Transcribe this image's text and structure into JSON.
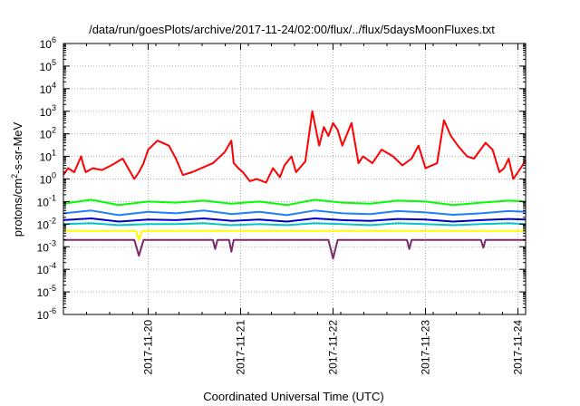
{
  "chart_data": {
    "type": "line",
    "title": "/data/run/goesPlots/archive/2017-11-24/02:00/flux/../flux/5daysMoonFluxes.txt",
    "xlabel": "Coordinated Universal Time (UTC)",
    "ylabel_base": "protons/cm",
    "ylabel_sup": "2",
    "ylabel_rest": "-s-sr-MeV",
    "yscale": "log",
    "ylim": [
      -6,
      6
    ],
    "xlim": [
      "2017-11-19T02:00",
      "2017-11-24T02:00"
    ],
    "grid": true,
    "x_ticks": [
      {
        "t": "2017-11-20T00:00",
        "label": "2017-11-20"
      },
      {
        "t": "2017-11-21T00:00",
        "label": "2017-11-21"
      },
      {
        "t": "2017-11-22T00:00",
        "label": "2017-11-22"
      },
      {
        "t": "2017-11-23T00:00",
        "label": "2017-11-23"
      },
      {
        "t": "2017-11-24T00:00",
        "label": "2017-11-24"
      }
    ],
    "y_ticks": [
      {
        "exp": -6,
        "base": "10",
        "sup": "-6"
      },
      {
        "exp": -5,
        "base": "10",
        "sup": "-5"
      },
      {
        "exp": -4,
        "base": "10",
        "sup": "-4"
      },
      {
        "exp": -3,
        "base": "10",
        "sup": "-3"
      },
      {
        "exp": -2,
        "base": "10",
        "sup": "-2"
      },
      {
        "exp": -1,
        "base": "10",
        "sup": "-1"
      },
      {
        "exp": 0,
        "base": "10",
        "sup": "0"
      },
      {
        "exp": 1,
        "base": "10",
        "sup": "1"
      },
      {
        "exp": 2,
        "base": "10",
        "sup": "2"
      },
      {
        "exp": 3,
        "base": "10",
        "sup": "3"
      },
      {
        "exp": 4,
        "base": "10",
        "sup": "4"
      },
      {
        "exp": 5,
        "base": "10",
        "sup": "5"
      },
      {
        "exp": 6,
        "base": "10",
        "sup": "6"
      }
    ],
    "series": [
      {
        "color": "#ff0000",
        "x": [
          "2017-11-19T02:00",
          "2017-11-19T03:12",
          "2017-11-19T04:48",
          "2017-11-19T06:36",
          "2017-11-19T07:12",
          "2017-11-19T07:48",
          "2017-11-19T09:36",
          "2017-11-19T12:00",
          "2017-11-19T14:24",
          "2017-11-19T17:24",
          "2017-11-19T20:24",
          "2017-11-19T21:36",
          "2017-11-19T22:48",
          "2017-11-20T00:00",
          "2017-11-20T02:24",
          "2017-11-20T05:24",
          "2017-11-20T07:12",
          "2017-11-20T09:00",
          "2017-11-20T11:24",
          "2017-11-20T13:48",
          "2017-11-20T16:48",
          "2017-11-20T19:48",
          "2017-11-20T21:36",
          "2017-11-20T22:12",
          "2017-11-20T23:24",
          "2017-11-21T00:36",
          "2017-11-21T02:24",
          "2017-11-21T04:12",
          "2017-11-21T06:36",
          "2017-11-21T08:24",
          "2017-11-21T10:12",
          "2017-11-21T11:24",
          "2017-11-21T13:12",
          "2017-11-21T14:24",
          "2017-11-21T16:48",
          "2017-11-21T18:36",
          "2017-11-21T20:24",
          "2017-11-21T21:36",
          "2017-11-21T22:48",
          "2017-11-22T00:00",
          "2017-11-22T01:12",
          "2017-11-22T02:24",
          "2017-11-22T04:48",
          "2017-11-22T06:36",
          "2017-11-22T07:48",
          "2017-11-22T10:12",
          "2017-11-22T12:36",
          "2017-11-22T15:36",
          "2017-11-22T18:00",
          "2017-11-22T20:24",
          "2017-11-22T22:12",
          "2017-11-23T00:00",
          "2017-11-23T03:00",
          "2017-11-23T04:48",
          "2017-11-23T06:36",
          "2017-11-23T08:24",
          "2017-11-23T10:48",
          "2017-11-23T12:36",
          "2017-11-23T15:36",
          "2017-11-23T17:24",
          "2017-11-23T19:12",
          "2017-11-23T20:24",
          "2017-11-23T21:36",
          "2017-11-23T22:48",
          "2017-11-24T00:00",
          "2017-11-24T01:12",
          "2017-11-24T02:00"
        ],
        "y": [
          1.5,
          3,
          2,
          10,
          4,
          2,
          3,
          2.5,
          4,
          8,
          1,
          2,
          5,
          20,
          50,
          30,
          8,
          1.5,
          2,
          3,
          5,
          15,
          50,
          5,
          3,
          2,
          0.8,
          1,
          0.7,
          3,
          1.2,
          4,
          10,
          2,
          6,
          1000,
          30,
          200,
          80,
          300,
          150,
          30,
          300,
          5,
          10,
          5,
          20,
          10,
          4,
          8,
          30,
          3,
          5,
          400,
          80,
          30,
          10,
          8,
          40,
          20,
          2,
          3,
          8,
          1,
          2,
          4,
          7
        ]
      },
      {
        "color": "#00ff00",
        "x": [
          "2017-11-19T02:00",
          "2017-11-19T09:12",
          "2017-11-19T16:24",
          "2017-11-20T00:00",
          "2017-11-20T07:12",
          "2017-11-20T14:24",
          "2017-11-20T21:36",
          "2017-11-21T04:48",
          "2017-11-21T12:00",
          "2017-11-21T19:12",
          "2017-11-22T02:24",
          "2017-11-22T09:36",
          "2017-11-22T16:48",
          "2017-11-23T00:00",
          "2017-11-23T07:12",
          "2017-11-23T14:24",
          "2017-11-23T21:36",
          "2017-11-24T02:00"
        ],
        "y": [
          0.08,
          0.12,
          0.07,
          0.1,
          0.09,
          0.11,
          0.08,
          0.1,
          0.07,
          0.12,
          0.09,
          0.08,
          0.11,
          0.1,
          0.07,
          0.09,
          0.11,
          0.1
        ]
      },
      {
        "color": "#1f7fff",
        "x": [
          "2017-11-19T02:00",
          "2017-11-19T09:12",
          "2017-11-19T16:24",
          "2017-11-20T00:00",
          "2017-11-20T07:12",
          "2017-11-20T14:24",
          "2017-11-20T21:36",
          "2017-11-21T04:48",
          "2017-11-21T12:00",
          "2017-11-21T19:12",
          "2017-11-22T02:24",
          "2017-11-22T09:36",
          "2017-11-22T16:48",
          "2017-11-23T00:00",
          "2017-11-23T07:12",
          "2017-11-23T14:24",
          "2017-11-23T21:36",
          "2017-11-24T02:00"
        ],
        "y": [
          0.03,
          0.04,
          0.025,
          0.035,
          0.03,
          0.04,
          0.028,
          0.035,
          0.025,
          0.04,
          0.03,
          0.028,
          0.038,
          0.033,
          0.026,
          0.03,
          0.038,
          0.035
        ]
      },
      {
        "color": "#0000cc",
        "x": [
          "2017-11-19T02:00",
          "2017-11-19T09:12",
          "2017-11-19T16:24",
          "2017-11-20T00:00",
          "2017-11-20T07:12",
          "2017-11-20T14:24",
          "2017-11-20T21:36",
          "2017-11-21T04:48",
          "2017-11-21T12:00",
          "2017-11-21T19:12",
          "2017-11-22T02:24",
          "2017-11-22T09:36",
          "2017-11-22T16:48",
          "2017-11-23T00:00",
          "2017-11-23T07:12",
          "2017-11-23T14:24",
          "2017-11-23T21:36",
          "2017-11-24T02:00"
        ],
        "y": [
          0.015,
          0.018,
          0.013,
          0.016,
          0.015,
          0.018,
          0.014,
          0.016,
          0.013,
          0.018,
          0.015,
          0.014,
          0.017,
          0.016,
          0.013,
          0.015,
          0.017,
          0.016
        ]
      },
      {
        "color": "#00c8c8",
        "x": [
          "2017-11-19T02:00",
          "2017-11-19T09:12",
          "2017-11-19T16:24",
          "2017-11-20T00:00",
          "2017-11-20T07:12",
          "2017-11-20T14:24",
          "2017-11-20T21:36",
          "2017-11-21T04:48",
          "2017-11-21T12:00",
          "2017-11-21T19:12",
          "2017-11-22T02:24",
          "2017-11-22T09:36",
          "2017-11-22T16:48",
          "2017-11-23T00:00",
          "2017-11-23T07:12",
          "2017-11-23T14:24",
          "2017-11-23T21:36",
          "2017-11-24T02:00"
        ],
        "y": [
          0.01,
          0.011,
          0.009,
          0.01,
          0.01,
          0.011,
          0.009,
          0.01,
          0.009,
          0.011,
          0.01,
          0.009,
          0.011,
          0.01,
          0.009,
          0.01,
          0.011,
          0.01
        ]
      },
      {
        "color": "#ffff00",
        "x": [
          "2017-11-19T02:00",
          "2017-11-19T12:00",
          "2017-11-19T20:48",
          "2017-11-19T21:36",
          "2017-11-19T22:24",
          "2017-11-20T08:24",
          "2017-11-20T16:48",
          "2017-11-21T02:24",
          "2017-11-21T12:00",
          "2017-11-21T23:24",
          "2017-11-22T12:00",
          "2017-11-22T23:12",
          "2017-11-23T08:24",
          "2017-11-23T17:24",
          "2017-11-24T02:00"
        ],
        "y": [
          0.005,
          0.005,
          0.005,
          0.002,
          0.005,
          0.005,
          0.005,
          0.005,
          0.005,
          0.005,
          0.005,
          0.005,
          0.005,
          0.005,
          0.005
        ]
      },
      {
        "color": "#7a2a6a",
        "x": [
          "2017-11-19T02:00",
          "2017-11-19T12:00",
          "2017-11-19T18:00",
          "2017-11-19T20:24",
          "2017-11-19T21:36",
          "2017-11-19T22:48",
          "2017-11-20T10:48",
          "2017-11-20T16:48",
          "2017-11-20T17:24",
          "2017-11-20T18:00",
          "2017-11-20T21:00",
          "2017-11-20T21:36",
          "2017-11-20T22:12",
          "2017-11-21T06:00",
          "2017-11-21T12:00",
          "2017-11-21T22:48",
          "2017-11-22T00:00",
          "2017-11-22T01:12",
          "2017-11-22T12:00",
          "2017-11-22T19:12",
          "2017-11-22T19:48",
          "2017-11-22T20:24",
          "2017-11-23T06:00",
          "2017-11-23T14:24",
          "2017-11-23T15:00",
          "2017-11-23T15:36",
          "2017-11-24T02:00"
        ],
        "y": [
          0.002,
          0.002,
          0.002,
          0.002,
          0.0004,
          0.002,
          0.002,
          0.002,
          0.0008,
          0.002,
          0.002,
          0.0006,
          0.002,
          0.002,
          0.002,
          0.002,
          0.0003,
          0.002,
          0.002,
          0.002,
          0.0008,
          0.002,
          0.002,
          0.002,
          0.0009,
          0.002,
          0.002
        ]
      }
    ]
  }
}
